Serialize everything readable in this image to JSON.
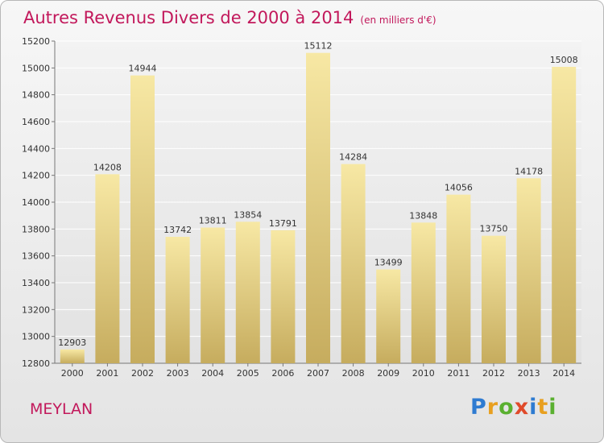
{
  "header": {
    "title": "Autres Revenus Divers de 2000 à 2014",
    "unit": "(en milliers d'€)"
  },
  "location": "MEYLAN",
  "brand": {
    "letters": [
      "P",
      "r",
      "o",
      "x",
      "i",
      "t",
      "i"
    ],
    "colors": [
      "#2e7bd1",
      "#e8a020",
      "#5ab030",
      "#e04a2a",
      "#2e7bd1",
      "#e8a020",
      "#5ab030"
    ]
  },
  "colors": {
    "bar_top": "#f7e8a4",
    "bar_bottom": "#c6ac5e",
    "title": "#c2185b"
  },
  "chart_data": {
    "type": "bar",
    "title": "Autres Revenus Divers de 2000 à 2014",
    "subtitle": "(en milliers d'€)",
    "xlabel": "",
    "ylabel": "",
    "ylim": [
      12800,
      15200
    ],
    "yticks": [
      12800,
      13000,
      13200,
      13400,
      13600,
      13800,
      14000,
      14200,
      14400,
      14600,
      14800,
      15000,
      15200
    ],
    "grid": true,
    "categories": [
      "2000",
      "2001",
      "2002",
      "2003",
      "2004",
      "2005",
      "2006",
      "2007",
      "2008",
      "2009",
      "2010",
      "2011",
      "2012",
      "2013",
      "2014"
    ],
    "values": [
      12903,
      14208,
      14944,
      13742,
      13811,
      13854,
      13791,
      15112,
      14284,
      13499,
      13848,
      14056,
      13750,
      14178,
      15008
    ]
  }
}
